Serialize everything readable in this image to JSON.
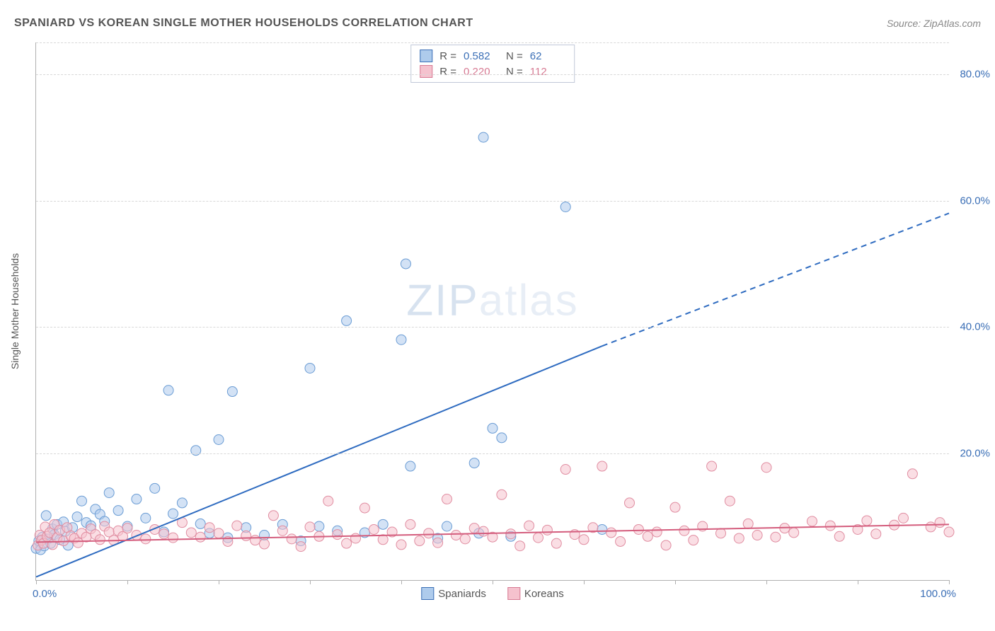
{
  "title": "SPANIARD VS KOREAN SINGLE MOTHER HOUSEHOLDS CORRELATION CHART",
  "source": "Source: ZipAtlas.com",
  "watermark_bold": "ZIP",
  "watermark_light": "atlas",
  "y_axis_title": "Single Mother Households",
  "chart": {
    "type": "scatter",
    "xlim": [
      0,
      100
    ],
    "ylim": [
      0,
      85
    ],
    "x_tick_step": 10,
    "y_ticks": [
      20,
      40,
      60,
      80
    ],
    "y_tick_labels": [
      "20.0%",
      "40.0%",
      "60.0%",
      "80.0%"
    ],
    "x_label_min": "0.0%",
    "x_label_max": "100.0%",
    "background_color": "#ffffff",
    "grid_color": "#d8d8d8",
    "axis_color": "#b0b0b0",
    "marker_radius": 7,
    "marker_opacity": 0.55,
    "series": [
      {
        "name": "Spaniards",
        "fill_color": "#aecbec",
        "stroke_color": "#6a9cd4",
        "trend_color": "#2e6bc0",
        "trend": {
          "x1": 0,
          "y1": 0.5,
          "x2_solid": 62,
          "y2_solid": 37,
          "x2_dash": 100,
          "y2_dash": 58
        },
        "R": "0.582",
        "N": "62",
        "points": [
          [
            0,
            5
          ],
          [
            0.3,
            6.2
          ],
          [
            0.5,
            4.8
          ],
          [
            0.7,
            6.8
          ],
          [
            0.9,
            5.4
          ],
          [
            1.1,
            10.2
          ],
          [
            1.3,
            6.5
          ],
          [
            1.6,
            5.8
          ],
          [
            1.8,
            8.1
          ],
          [
            2,
            7.2
          ],
          [
            2.3,
            8.8
          ],
          [
            2.6,
            6.4
          ],
          [
            3,
            9.2
          ],
          [
            3.2,
            7.7
          ],
          [
            3.5,
            5.5
          ],
          [
            4,
            8.3
          ],
          [
            4.5,
            10
          ],
          [
            5,
            12.5
          ],
          [
            5.5,
            9.1
          ],
          [
            6,
            8.6
          ],
          [
            6.5,
            11.2
          ],
          [
            7,
            10.4
          ],
          [
            7.5,
            9.3
          ],
          [
            8,
            13.8
          ],
          [
            9,
            11
          ],
          [
            10,
            8.5
          ],
          [
            11,
            12.8
          ],
          [
            12,
            9.8
          ],
          [
            13,
            14.5
          ],
          [
            14,
            7.6
          ],
          [
            14.5,
            30
          ],
          [
            15,
            10.5
          ],
          [
            16,
            12.2
          ],
          [
            17.5,
            20.5
          ],
          [
            18,
            8.9
          ],
          [
            19,
            7.4
          ],
          [
            20,
            22.2
          ],
          [
            21,
            6.7
          ],
          [
            21.5,
            29.8
          ],
          [
            23,
            8.3
          ],
          [
            25,
            7.1
          ],
          [
            27,
            8.8
          ],
          [
            29,
            6.2
          ],
          [
            30,
            33.5
          ],
          [
            31,
            8.5
          ],
          [
            33,
            7.8
          ],
          [
            34,
            41
          ],
          [
            36,
            7.5
          ],
          [
            38,
            8.8
          ],
          [
            40,
            38
          ],
          [
            40.5,
            50
          ],
          [
            41,
            18
          ],
          [
            44,
            6.6
          ],
          [
            45,
            8.5
          ],
          [
            48,
            18.5
          ],
          [
            48.5,
            7.4
          ],
          [
            49,
            70
          ],
          [
            50,
            24
          ],
          [
            51,
            22.5
          ],
          [
            52,
            6.9
          ],
          [
            58,
            59
          ],
          [
            62,
            8
          ]
        ]
      },
      {
        "name": "Koreans",
        "fill_color": "#f5c2ce",
        "stroke_color": "#e08da1",
        "trend_color": "#d45d7d",
        "trend": {
          "x1": 0,
          "y1": 6,
          "x2_solid": 100,
          "y2_solid": 8.8,
          "x2_dash": 100,
          "y2_dash": 8.8
        },
        "R": "0.220",
        "N": "112",
        "points": [
          [
            0.2,
            5.5
          ],
          [
            0.4,
            7.1
          ],
          [
            0.6,
            6.3
          ],
          [
            0.8,
            5.8
          ],
          [
            1,
            8.4
          ],
          [
            1.2,
            6.9
          ],
          [
            1.5,
            7.5
          ],
          [
            1.8,
            5.6
          ],
          [
            2,
            8.8
          ],
          [
            2.3,
            6.7
          ],
          [
            2.6,
            7.9
          ],
          [
            3,
            6.2
          ],
          [
            3.4,
            8.3
          ],
          [
            3.8,
            7
          ],
          [
            4.2,
            6.6
          ],
          [
            4.6,
            5.9
          ],
          [
            5,
            7.4
          ],
          [
            5.5,
            6.8
          ],
          [
            6,
            8.1
          ],
          [
            6.5,
            7.2
          ],
          [
            7,
            6.4
          ],
          [
            7.5,
            8.5
          ],
          [
            8,
            7.6
          ],
          [
            8.5,
            6.3
          ],
          [
            9,
            7.8
          ],
          [
            9.5,
            6.9
          ],
          [
            10,
            8.2
          ],
          [
            11,
            7.1
          ],
          [
            12,
            6.5
          ],
          [
            13,
            8
          ],
          [
            14,
            7.3
          ],
          [
            15,
            6.7
          ],
          [
            16,
            9.1
          ],
          [
            17,
            7.5
          ],
          [
            18,
            6.8
          ],
          [
            19,
            8.3
          ],
          [
            20,
            7.4
          ],
          [
            21,
            6.1
          ],
          [
            22,
            8.6
          ],
          [
            23,
            7
          ],
          [
            24,
            6.3
          ],
          [
            25,
            5.7
          ],
          [
            26,
            10.2
          ],
          [
            27,
            7.8
          ],
          [
            28,
            6.5
          ],
          [
            29,
            5.3
          ],
          [
            30,
            8.4
          ],
          [
            31,
            6.9
          ],
          [
            32,
            12.5
          ],
          [
            33,
            7.2
          ],
          [
            34,
            5.8
          ],
          [
            35,
            6.6
          ],
          [
            36,
            11.4
          ],
          [
            37,
            8
          ],
          [
            38,
            6.4
          ],
          [
            39,
            7.6
          ],
          [
            40,
            5.6
          ],
          [
            41,
            8.8
          ],
          [
            42,
            6.2
          ],
          [
            43,
            7.4
          ],
          [
            44,
            5.9
          ],
          [
            45,
            12.8
          ],
          [
            46,
            7.1
          ],
          [
            47,
            6.5
          ],
          [
            48,
            8.2
          ],
          [
            49,
            7.7
          ],
          [
            50,
            6.8
          ],
          [
            51,
            13.5
          ],
          [
            52,
            7.3
          ],
          [
            53,
            5.4
          ],
          [
            54,
            8.6
          ],
          [
            55,
            6.7
          ],
          [
            56,
            7.9
          ],
          [
            57,
            5.8
          ],
          [
            58,
            17.5
          ],
          [
            59,
            7.2
          ],
          [
            60,
            6.4
          ],
          [
            61,
            8.3
          ],
          [
            62,
            18
          ],
          [
            63,
            7.5
          ],
          [
            64,
            6.1
          ],
          [
            65,
            12.2
          ],
          [
            66,
            8
          ],
          [
            67,
            6.9
          ],
          [
            68,
            7.6
          ],
          [
            69,
            5.5
          ],
          [
            70,
            11.5
          ],
          [
            71,
            7.8
          ],
          [
            72,
            6.3
          ],
          [
            73,
            8.5
          ],
          [
            74,
            18
          ],
          [
            75,
            7.4
          ],
          [
            76,
            12.5
          ],
          [
            77,
            6.6
          ],
          [
            78,
            8.9
          ],
          [
            79,
            7.1
          ],
          [
            80,
            17.8
          ],
          [
            81,
            6.8
          ],
          [
            82,
            8.2
          ],
          [
            83,
            7.5
          ],
          [
            85,
            9.3
          ],
          [
            87,
            8.6
          ],
          [
            88,
            6.9
          ],
          [
            90,
            8
          ],
          [
            91,
            9.4
          ],
          [
            92,
            7.3
          ],
          [
            94,
            8.7
          ],
          [
            95,
            9.8
          ],
          [
            96,
            16.8
          ],
          [
            98,
            8.4
          ],
          [
            99,
            9.1
          ],
          [
            100,
            7.6
          ]
        ]
      }
    ]
  },
  "legend": {
    "series1_label": "Spaniards",
    "series2_label": "Koreans"
  },
  "stats_labels": {
    "R": "R =",
    "N": "N ="
  }
}
